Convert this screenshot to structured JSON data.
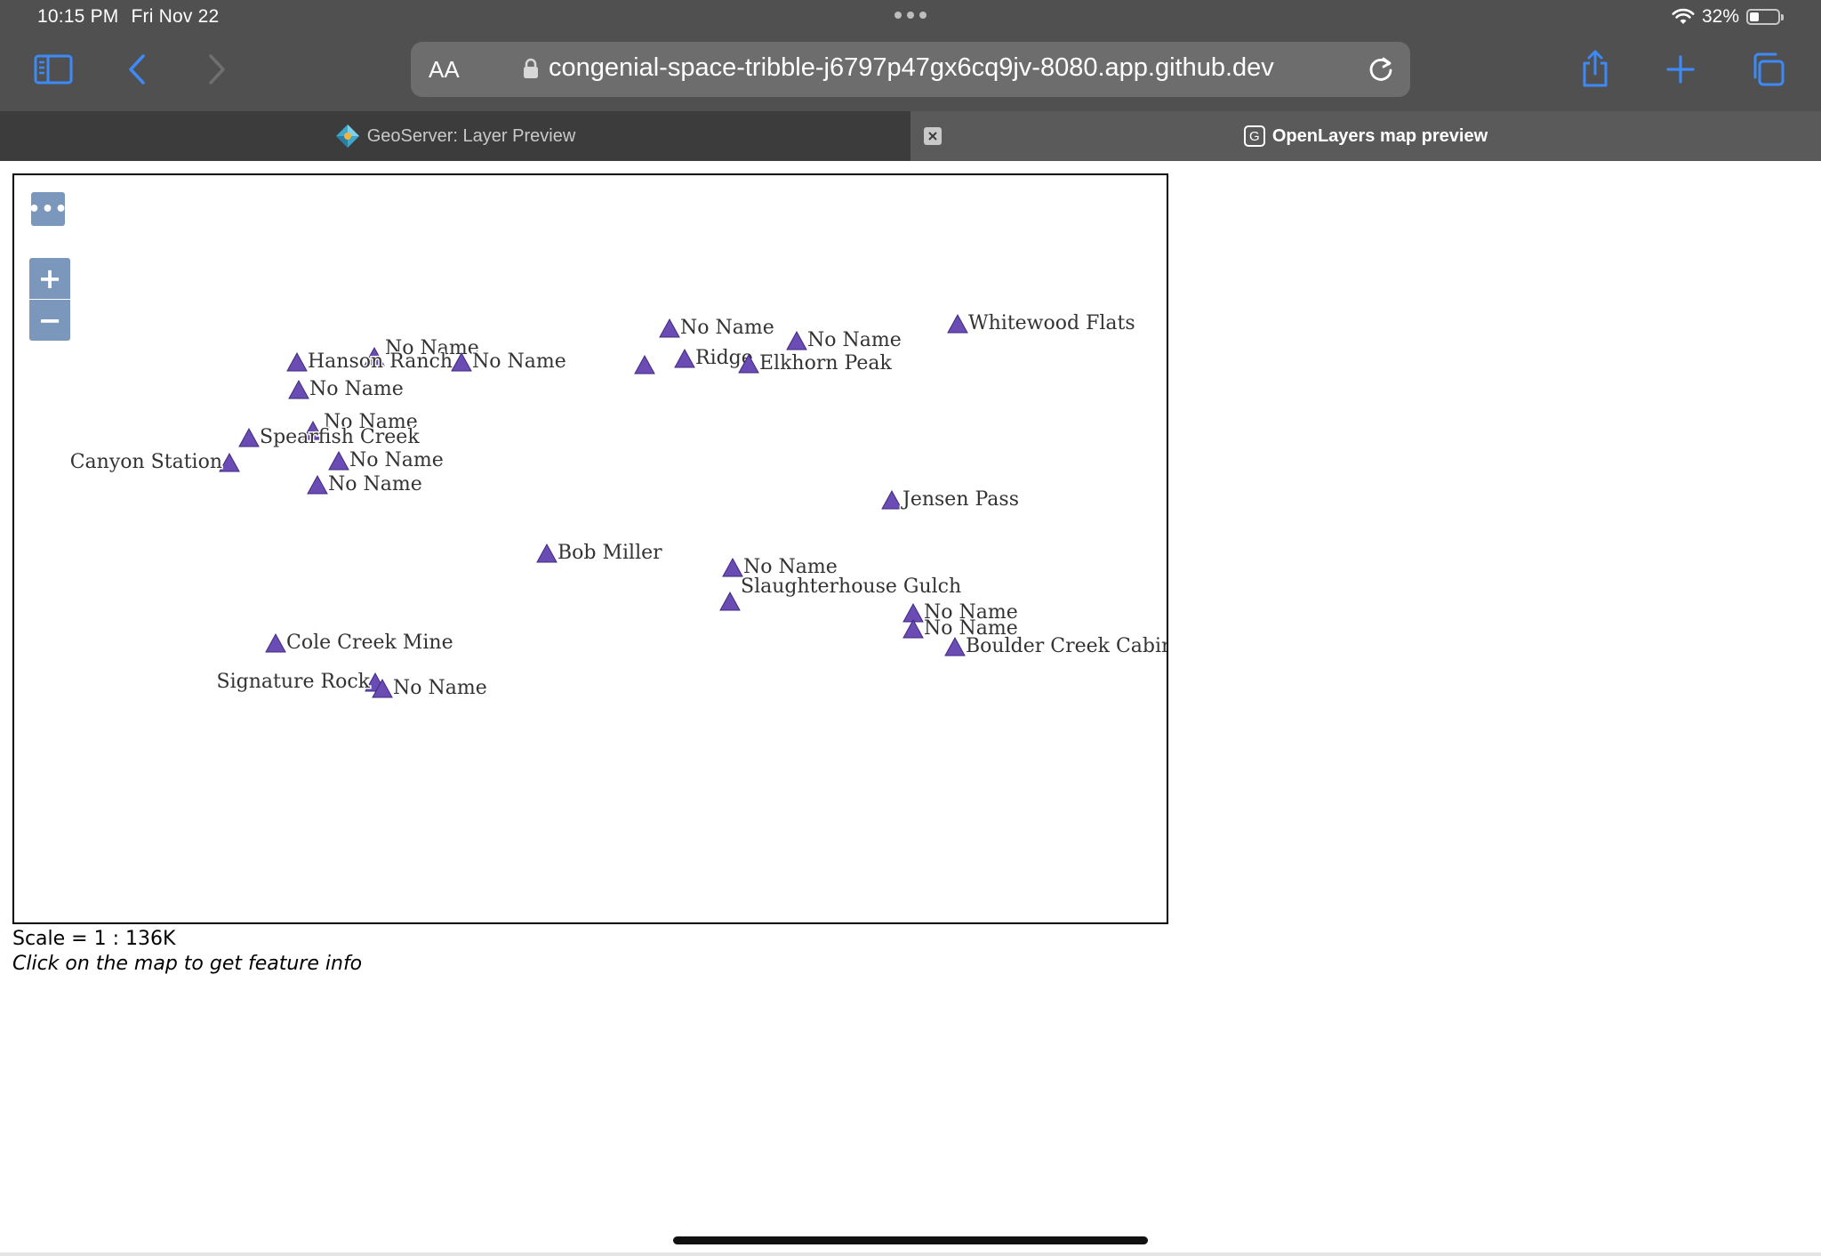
{
  "status_bar": {
    "time": "10:15 PM",
    "date": "Fri Nov 22",
    "battery_text": "32%",
    "battery_level": 0.32
  },
  "toolbar": {
    "text_size_label": "AA",
    "url": "congenial-space-tribble-j6797p47gx6cq9jv-8080.app.github.dev"
  },
  "tabs": [
    {
      "title": "GeoServer: Layer Preview",
      "active": false
    },
    {
      "title": "OpenLayers map preview",
      "active": true,
      "favicon_letter": "G"
    }
  ],
  "map": {
    "controls": {
      "more_label": "•••",
      "zoom_in_label": "+",
      "zoom_out_label": "−"
    },
    "marker_color": "#6a4cb4",
    "features": [
      {
        "name": "No Name"
      },
      {
        "name": "Whitewood Flats"
      },
      {
        "name": "No Name"
      },
      {
        "name": "No Name"
      },
      {
        "name": "Hanson Ranch"
      },
      {
        "name": "No Name"
      },
      {
        "name": ""
      },
      {
        "name": "Ridge"
      },
      {
        "name": "Elkhorn Peak"
      },
      {
        "name": "No Name"
      },
      {
        "name": "No Name"
      },
      {
        "name": "Spearfish Creek"
      },
      {
        "name": "Canyon Station"
      },
      {
        "name": "No Name"
      },
      {
        "name": "No Name"
      },
      {
        "name": "Jensen Pass"
      },
      {
        "name": "Bob Miller"
      },
      {
        "name": "No Name"
      },
      {
        "name": "Slaughterhouse Gulch"
      },
      {
        "name": "No Name"
      },
      {
        "name": "No Name"
      },
      {
        "name": "Boulder Creek Cabin"
      },
      {
        "name": "Cole Creek Mine"
      },
      {
        "name": "Signature Rock"
      },
      {
        "name": "No Name"
      }
    ]
  },
  "footer": {
    "scale": "Scale = 1 : 136K",
    "hint": "Click on the map to get feature info"
  }
}
